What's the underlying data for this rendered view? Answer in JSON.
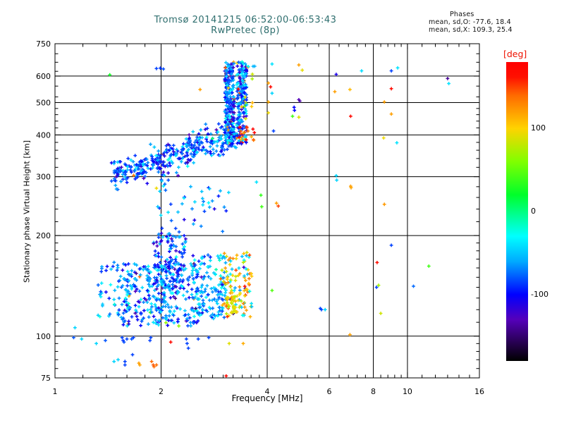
{
  "chart_data": {
    "type": "scatter",
    "title": "Tromsø 20141215 06:52:00-06:53:43",
    "subtitle": "RwPretec (8p)",
    "title_color": "#2e6e6e",
    "stats": {
      "header": "Phases",
      "o_line": "mean, sd,O: -77.6, 18.4",
      "x_line": "mean, sd,X: 109.3, 25.4"
    },
    "xlabel": "Frequency [MHz]",
    "ylabel": "Stationary phase Virtual Height [km]",
    "x_scale": "log",
    "y_scale": "log",
    "xlim": [
      1,
      16
    ],
    "ylim": [
      75,
      750
    ],
    "x_major_ticks": [
      1,
      2,
      4,
      6,
      8,
      10,
      16
    ],
    "x_minor_ticks": [
      1.2,
      1.4,
      1.6,
      1.8,
      2.2,
      2.4,
      2.6,
      2.8,
      3,
      3.2,
      3.4,
      3.6,
      3.8,
      4.4,
      4.8,
      5.2,
      5.6,
      6.4,
      6.8,
      7.2,
      7.6,
      8.4,
      8.8,
      9.2,
      9.6,
      11,
      12,
      13,
      14,
      15
    ],
    "y_major_ticks": [
      75,
      100,
      200,
      300,
      400,
      500,
      600,
      750
    ],
    "y_minor_ticks": [
      80,
      85,
      90,
      95,
      110,
      120,
      130,
      140,
      150,
      160,
      170,
      180,
      190,
      220,
      240,
      260,
      280,
      320,
      340,
      360,
      380,
      420,
      440,
      460,
      480,
      520,
      560,
      620,
      660,
      700
    ],
    "grid": true,
    "axis_color": "#000000",
    "colorbar": {
      "label": "[deg]",
      "label_color": "#ee1100",
      "ticks": [
        100,
        0,
        -100
      ],
      "range": [
        -180,
        180
      ],
      "stops": [
        [
          180,
          "#ff0000"
        ],
        [
          162,
          "#ff1000"
        ],
        [
          140,
          "#ff6a00"
        ],
        [
          100,
          "#ffd300"
        ],
        [
          60,
          "#80ff00"
        ],
        [
          20,
          "#00ff2a"
        ],
        [
          0,
          "#00ff80"
        ],
        [
          -30,
          "#00ffff"
        ],
        [
          -60,
          "#00aaff"
        ],
        [
          -100,
          "#0000ff"
        ],
        [
          -130,
          "#5500bb"
        ],
        [
          -158,
          "#270050"
        ],
        [
          -180,
          "#000000"
        ]
      ]
    },
    "clusters": [
      {
        "name": "f-trace-diagonal",
        "mode": "diag",
        "n": 380,
        "f": [
          1.45,
          3.25
        ],
        "h": [
          303,
          400
        ],
        "jitter": 0.021,
        "phases": [
          {
            "w": 0.76,
            "m": -82,
            "s": 18
          },
          {
            "w": 0.13,
            "m": -45,
            "s": 10
          },
          {
            "w": 0.07,
            "m": -115,
            "s": 12
          },
          {
            "w": 0.04,
            "m": 0,
            "s": 90
          }
        ]
      },
      {
        "name": "f-trace-vertical",
        "mode": "blob",
        "n": 430,
        "bands": [
          [
            3.03,
            3.23,
            0.55
          ],
          [
            3.28,
            3.5,
            0.45
          ]
        ],
        "h": [
          375,
          662
        ],
        "phases": [
          {
            "w": 0.7,
            "m": -80,
            "s": 22
          },
          {
            "w": 0.16,
            "m": -42,
            "s": 10
          },
          {
            "w": 0.09,
            "m": -120,
            "s": 14
          },
          {
            "w": 0.05,
            "m": 120,
            "s": 35
          }
        ]
      },
      {
        "name": "x-mode-arc",
        "mode": "blob",
        "n": 16,
        "f": [
          3.32,
          3.68
        ],
        "h": [
          383,
          428
        ],
        "phases": [
          {
            "w": 0.85,
            "m": 140,
            "s": 25
          },
          {
            "w": 0.15,
            "m": -40,
            "s": 10
          }
        ]
      },
      {
        "name": "x-mode-upper",
        "mode": "blob",
        "n": 14,
        "f": [
          3.42,
          3.72
        ],
        "h": [
          470,
          650
        ],
        "phases": [
          {
            "w": 0.6,
            "m": 115,
            "s": 30
          },
          {
            "w": 0.4,
            "m": -40,
            "s": 15
          }
        ]
      },
      {
        "name": "e-region-low",
        "mode": "blob",
        "n": 300,
        "f": [
          1.55,
          2.55
        ],
        "h": [
          107,
          165
        ],
        "phases": [
          {
            "w": 0.52,
            "m": -85,
            "s": 18
          },
          {
            "w": 0.36,
            "m": -48,
            "s": 12
          },
          {
            "w": 0.08,
            "m": -120,
            "s": 12
          },
          {
            "w": 0.04,
            "m": 20,
            "s": 90
          }
        ]
      },
      {
        "name": "e-region-column",
        "mode": "blob",
        "n": 130,
        "f": [
          1.9,
          2.35
        ],
        "h": [
          140,
          205
        ],
        "phases": [
          {
            "w": 0.7,
            "m": -85,
            "s": 18
          },
          {
            "w": 0.2,
            "m": -50,
            "s": 12
          },
          {
            "w": 0.1,
            "m": -115,
            "s": 15
          }
        ]
      },
      {
        "name": "e-region-mid",
        "mode": "blob",
        "n": 150,
        "f": [
          2.45,
          3.05
        ],
        "h": [
          112,
          175
        ],
        "phases": [
          {
            "w": 0.5,
            "m": -55,
            "s": 15
          },
          {
            "w": 0.35,
            "m": -85,
            "s": 15
          },
          {
            "w": 0.15,
            "m": -30,
            "s": 10
          }
        ]
      },
      {
        "name": "e-region-left",
        "mode": "blob",
        "n": 55,
        "f": [
          1.32,
          1.62
        ],
        "h": [
          112,
          168
        ],
        "phases": [
          {
            "w": 0.5,
            "m": -48,
            "s": 10
          },
          {
            "w": 0.5,
            "m": -80,
            "s": 15
          }
        ]
      },
      {
        "name": "e-region-x",
        "mode": "blob",
        "n": 120,
        "f": [
          2.95,
          3.62
        ],
        "h": [
          114,
          178
        ],
        "phases": [
          {
            "w": 0.48,
            "m": 112,
            "s": 22
          },
          {
            "w": 0.15,
            "m": 85,
            "s": 10
          },
          {
            "w": 0.22,
            "m": -45,
            "s": 12
          },
          {
            "w": 0.1,
            "m": 150,
            "s": 15
          },
          {
            "w": 0.05,
            "m": -110,
            "s": 20
          }
        ]
      },
      {
        "name": "e-region-x-gold",
        "mode": "blob",
        "n": 30,
        "f": [
          3.05,
          3.3
        ],
        "h": [
          116,
          132
        ],
        "phases": [
          {
            "w": 1,
            "m": 95,
            "s": 15
          }
        ]
      },
      {
        "name": "mid-sparse",
        "mode": "blob",
        "n": 42,
        "f": [
          1.95,
          3.15
        ],
        "h": [
          205,
          295
        ],
        "phases": [
          {
            "w": 0.68,
            "m": -80,
            "s": 20
          },
          {
            "w": 0.32,
            "m": -45,
            "s": 12
          }
        ]
      }
    ],
    "outliers": [
      [
        1.43,
        605,
        25
      ],
      [
        1.94,
        632,
        -85
      ],
      [
        1.99,
        634,
        -88
      ],
      [
        2.03,
        630,
        -82
      ],
      [
        2.58,
        547,
        120
      ],
      [
        1.94,
        277,
        95
      ],
      [
        4.13,
        652,
        -40
      ],
      [
        4.92,
        648,
        120
      ],
      [
        5.03,
        625,
        92
      ],
      [
        7.41,
        622,
        -42
      ],
      [
        9.0,
        622,
        -85
      ],
      [
        9.38,
        635,
        -40
      ],
      [
        6.28,
        607,
        -110
      ],
      [
        4.03,
        572,
        120
      ],
      [
        4.09,
        557,
        170
      ],
      [
        4.13,
        533,
        -45
      ],
      [
        4.03,
        502,
        115
      ],
      [
        4.92,
        510,
        -130
      ],
      [
        4.95,
        505,
        -135
      ],
      [
        6.22,
        539,
        120
      ],
      [
        6.87,
        547,
        110
      ],
      [
        9.0,
        550,
        170
      ],
      [
        8.6,
        502,
        120
      ],
      [
        13.1,
        570,
        -40
      ],
      [
        13.0,
        590,
        -140
      ],
      [
        4.03,
        466,
        95
      ],
      [
        4.77,
        484,
        -100
      ],
      [
        4.78,
        474,
        -100
      ],
      [
        4.72,
        455,
        40
      ],
      [
        4.92,
        452,
        90
      ],
      [
        6.9,
        455,
        170
      ],
      [
        9.0,
        462,
        120
      ],
      [
        4.17,
        411,
        -85
      ],
      [
        8.56,
        392,
        95
      ],
      [
        9.33,
        379,
        -40
      ],
      [
        6.28,
        302,
        -45
      ],
      [
        6.3,
        293,
        -45
      ],
      [
        6.9,
        281,
        120
      ],
      [
        6.92,
        278,
        118
      ],
      [
        4.25,
        250,
        120
      ],
      [
        8.6,
        248,
        122
      ],
      [
        3.84,
        264,
        35
      ],
      [
        3.86,
        244,
        40
      ],
      [
        4.3,
        245,
        150
      ],
      [
        3.73,
        289,
        -40
      ],
      [
        9.0,
        187,
        -85
      ],
      [
        8.2,
        166,
        165
      ],
      [
        11.5,
        162,
        40
      ],
      [
        8.28,
        142,
        70
      ],
      [
        8.17,
        140,
        -85
      ],
      [
        10.4,
        141,
        -75
      ],
      [
        4.13,
        137,
        45
      ],
      [
        5.66,
        121,
        -85
      ],
      [
        5.7,
        120,
        -85
      ],
      [
        5.84,
        120,
        -45
      ],
      [
        8.4,
        117,
        85
      ],
      [
        6.87,
        101,
        120
      ],
      [
        1.14,
        106,
        -45
      ],
      [
        1.13,
        99,
        -80
      ],
      [
        1.19,
        98,
        -45
      ],
      [
        1.31,
        95,
        -45
      ],
      [
        1.39,
        97,
        -80
      ],
      [
        1.55,
        99,
        -85
      ],
      [
        1.56,
        97,
        -88
      ],
      [
        1.57,
        96,
        -82
      ],
      [
        1.6,
        98,
        -85
      ],
      [
        1.65,
        98,
        -80
      ],
      [
        1.67,
        99,
        -85
      ],
      [
        1.87,
        99,
        -85
      ],
      [
        1.86,
        97,
        -85
      ],
      [
        1.66,
        88,
        -85
      ],
      [
        1.47,
        84,
        -45
      ],
      [
        1.51,
        85,
        -45
      ],
      [
        1.58,
        84,
        -85
      ],
      [
        1.58,
        82,
        -85
      ],
      [
        1.73,
        83,
        120
      ],
      [
        1.74,
        82,
        118
      ],
      [
        1.88,
        84,
        140
      ],
      [
        1.9,
        82,
        145
      ],
      [
        1.91,
        81,
        140
      ],
      [
        1.94,
        82,
        138
      ],
      [
        2.13,
        96,
        170
      ],
      [
        3.12,
        95,
        90
      ],
      [
        3.42,
        95,
        115
      ],
      [
        3.06,
        76,
        170
      ],
      [
        2.36,
        98,
        -85
      ],
      [
        2.37,
        95,
        -85
      ],
      [
        2.39,
        92,
        -85
      ],
      [
        2.55,
        98,
        -85
      ],
      [
        2.73,
        99,
        -85
      ],
      [
        2.2,
        210,
        -85
      ],
      [
        2.25,
        205,
        -80
      ]
    ]
  }
}
